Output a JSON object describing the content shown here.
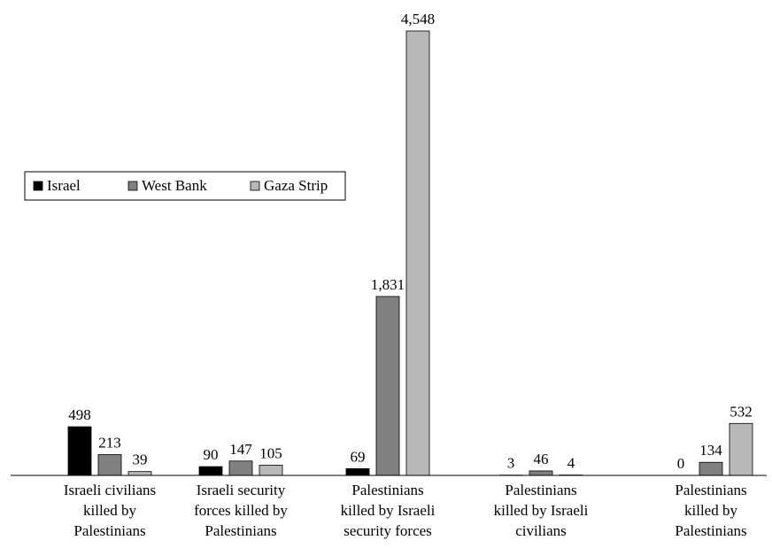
{
  "chart_data": {
    "type": "bar",
    "categories": [
      [
        "Israeli civilians",
        "killed by",
        "Palestinians"
      ],
      [
        "Israeli security",
        "forces killed by",
        "Palestinians"
      ],
      [
        "Palestinians",
        "killed by Israeli",
        "security forces"
      ],
      [
        "Palestinians",
        "killed by Israeli",
        "civilians"
      ],
      [
        "Palestinians",
        "killed by",
        "Palestinians"
      ]
    ],
    "series": [
      {
        "name": "Israel",
        "color": "#000000",
        "values": [
          498,
          90,
          69,
          3,
          0
        ],
        "labels": [
          "498",
          "90",
          "69",
          "3",
          "0"
        ]
      },
      {
        "name": "West Bank",
        "color": "#808080",
        "values": [
          213,
          147,
          1831,
          46,
          134
        ],
        "labels": [
          "213",
          "147",
          "1,831",
          "46",
          "134"
        ]
      },
      {
        "name": "Gaza Strip",
        "color": "#b8b8b8",
        "values": [
          39,
          105,
          4548,
          4,
          532
        ],
        "labels": [
          "39",
          "105",
          "4,548",
          "4",
          "532"
        ]
      }
    ],
    "ylim": [
      0,
      4548
    ],
    "grid": false,
    "legend": "left"
  }
}
